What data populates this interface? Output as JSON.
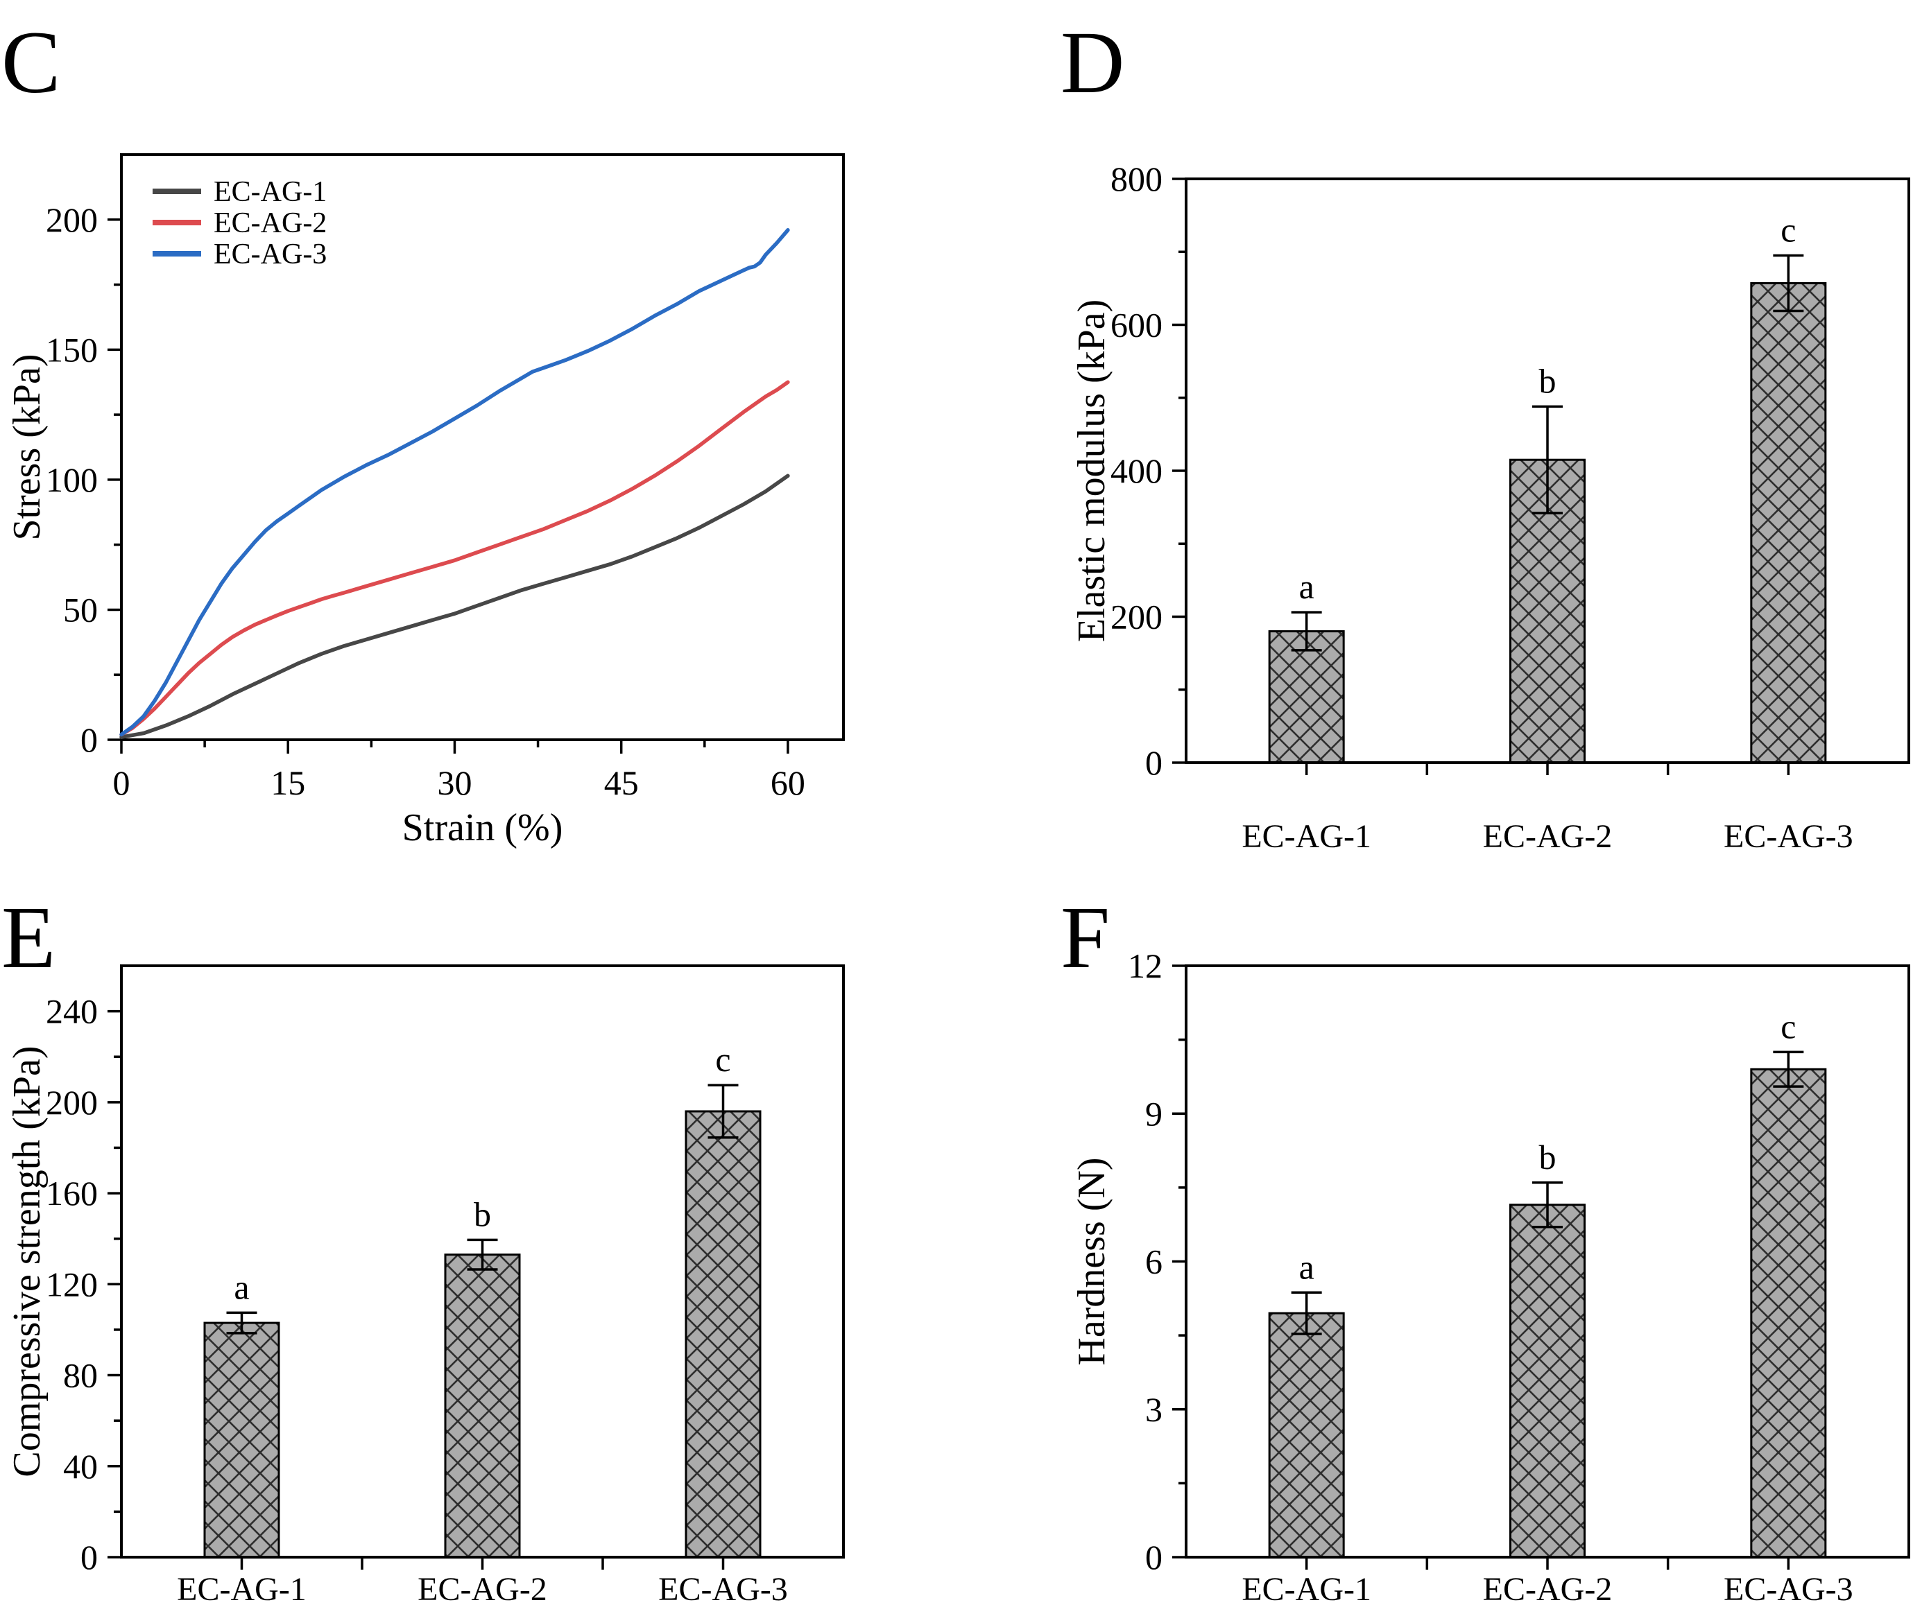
{
  "chart_data": [
    {
      "panel_letter": "C",
      "type": "line",
      "xlabel": "Strain (%)",
      "ylabel": "Stress (kPa)",
      "xlim": [
        0,
        65
      ],
      "ylim": [
        0,
        225
      ],
      "xticks_major": [
        0,
        15,
        30,
        45,
        60
      ],
      "xtick_minor_step": 7.5,
      "yticks_major": [
        0,
        50,
        100,
        150,
        200
      ],
      "ytick_minor_step": 25,
      "grid": "off",
      "legend_position": "top-left",
      "series": [
        {
          "name": "EC-AG-1",
          "color": "#474747",
          "points": [
            [
              0,
              1
            ],
            [
              2,
              2.5
            ],
            [
              4,
              5.5
            ],
            [
              6,
              9
            ],
            [
              8,
              13
            ],
            [
              10,
              17.5
            ],
            [
              12,
              21.5
            ],
            [
              14,
              25.5
            ],
            [
              16,
              29.5
            ],
            [
              18,
              33
            ],
            [
              20,
              36
            ],
            [
              22,
              38.5
            ],
            [
              24,
              41
            ],
            [
              26,
              43.5
            ],
            [
              28,
              46
            ],
            [
              30,
              48.5
            ],
            [
              32,
              51.5
            ],
            [
              34,
              54.5
            ],
            [
              36,
              57.5
            ],
            [
              38,
              60
            ],
            [
              40,
              62.5
            ],
            [
              42,
              65
            ],
            [
              44,
              67.5
            ],
            [
              46,
              70.5
            ],
            [
              48,
              74
            ],
            [
              50,
              77.5
            ],
            [
              52,
              81.5
            ],
            [
              54,
              86
            ],
            [
              56,
              90.5
            ],
            [
              58,
              95.5
            ],
            [
              60,
              101.5
            ]
          ]
        },
        {
          "name": "EC-AG-2",
          "color": "#dd4b4f",
          "points": [
            [
              0,
              2
            ],
            [
              1,
              4.5
            ],
            [
              2,
              8
            ],
            [
              3,
              12
            ],
            [
              4,
              16.5
            ],
            [
              5,
              21
            ],
            [
              6,
              25.5
            ],
            [
              7,
              29.5
            ],
            [
              8,
              33
            ],
            [
              9,
              36.5
            ],
            [
              10,
              39.5
            ],
            [
              11,
              42
            ],
            [
              12,
              44.2
            ],
            [
              13,
              46
            ],
            [
              14,
              47.8
            ],
            [
              15,
              49.5
            ],
            [
              16,
              51
            ],
            [
              17,
              52.5
            ],
            [
              18,
              54
            ],
            [
              19,
              55.3
            ],
            [
              20,
              56.5
            ],
            [
              22,
              59
            ],
            [
              24,
              61.5
            ],
            [
              26,
              64
            ],
            [
              28,
              66.5
            ],
            [
              30,
              69
            ],
            [
              32,
              72
            ],
            [
              34,
              75
            ],
            [
              36,
              78
            ],
            [
              38,
              81
            ],
            [
              40,
              84.5
            ],
            [
              42,
              88
            ],
            [
              44,
              92
            ],
            [
              46,
              96.5
            ],
            [
              48,
              101.5
            ],
            [
              50,
              107
            ],
            [
              52,
              113
            ],
            [
              54,
              119.5
            ],
            [
              56,
              126
            ],
            [
              58,
              132
            ],
            [
              59,
              134.5
            ],
            [
              60,
              137.5
            ]
          ]
        },
        {
          "name": "EC-AG-3",
          "color": "#2b6cc4",
          "points": [
            [
              0,
              2
            ],
            [
              1,
              5
            ],
            [
              2,
              9
            ],
            [
              3,
              15
            ],
            [
              4,
              22
            ],
            [
              5,
              30
            ],
            [
              6,
              38
            ],
            [
              7,
              46
            ],
            [
              8,
              53
            ],
            [
              9,
              60
            ],
            [
              10,
              66
            ],
            [
              11,
              71
            ],
            [
              12,
              76
            ],
            [
              13,
              80.5
            ],
            [
              14,
              84
            ],
            [
              15,
              87
            ],
            [
              16,
              90
            ],
            [
              17,
              93
            ],
            [
              18,
              96
            ],
            [
              19,
              98.5
            ],
            [
              20,
              101
            ],
            [
              22,
              105.5
            ],
            [
              24,
              109.5
            ],
            [
              26,
              114
            ],
            [
              28,
              118.5
            ],
            [
              30,
              123.5
            ],
            [
              32,
              128.5
            ],
            [
              34,
              134
            ],
            [
              36,
              139
            ],
            [
              37,
              141.5
            ],
            [
              38,
              143
            ],
            [
              39,
              144.5
            ],
            [
              40,
              146
            ],
            [
              42,
              149.5
            ],
            [
              44,
              153.5
            ],
            [
              46,
              158
            ],
            [
              48,
              163
            ],
            [
              50,
              167.5
            ],
            [
              52,
              172.5
            ],
            [
              54,
              176.5
            ],
            [
              55,
              178.5
            ],
            [
              56,
              180.5
            ],
            [
              56.5,
              181.5
            ],
            [
              57,
              182
            ],
            [
              57.5,
              183.5
            ],
            [
              58,
              186.5
            ],
            [
              59,
              191
            ],
            [
              60,
              196
            ]
          ]
        }
      ]
    },
    {
      "panel_letter": "D",
      "type": "bar",
      "ylabel": "Elastic modulus (kPa)",
      "categories": [
        "EC-AG-1",
        "EC-AG-2",
        "EC-AG-3"
      ],
      "values": [
        180,
        415,
        657
      ],
      "errors": [
        26,
        73,
        38
      ],
      "sig_letters": [
        "a",
        "b",
        "c"
      ],
      "ylim": [
        0,
        800
      ],
      "yticks_major": [
        0,
        200,
        400,
        600,
        800
      ],
      "ytick_minor_step": 100,
      "grid": "off",
      "bar_fill": "#ababab",
      "hatch_color": "#2e2e2e"
    },
    {
      "panel_letter": "E",
      "type": "bar",
      "ylabel": "Compressive strength (kPa)",
      "categories": [
        "EC-AG-1",
        "EC-AG-2",
        "EC-AG-3"
      ],
      "values": [
        103,
        133,
        196
      ],
      "errors": [
        4.5,
        6.5,
        11.5
      ],
      "sig_letters": [
        "a",
        "b",
        "c"
      ],
      "ylim": [
        0,
        260
      ],
      "yticks_major": [
        0,
        40,
        80,
        120,
        160,
        200,
        240
      ],
      "ytick_minor_step": 20,
      "grid": "off",
      "bar_fill": "#ababab",
      "hatch_color": "#2e2e2e"
    },
    {
      "panel_letter": "F",
      "type": "bar",
      "ylabel": "Hardness (N)",
      "categories": [
        "EC-AG-1",
        "EC-AG-2",
        "EC-AG-3"
      ],
      "values": [
        4.95,
        7.15,
        9.9
      ],
      "errors": [
        0.42,
        0.45,
        0.35
      ],
      "sig_letters": [
        "a",
        "b",
        "c"
      ],
      "ylim": [
        0,
        12
      ],
      "yticks_major": [
        0,
        3,
        6,
        9,
        12
      ],
      "ytick_minor_step": 1.5,
      "grid": "off",
      "bar_fill": "#ababab",
      "hatch_color": "#2e2e2e"
    }
  ]
}
